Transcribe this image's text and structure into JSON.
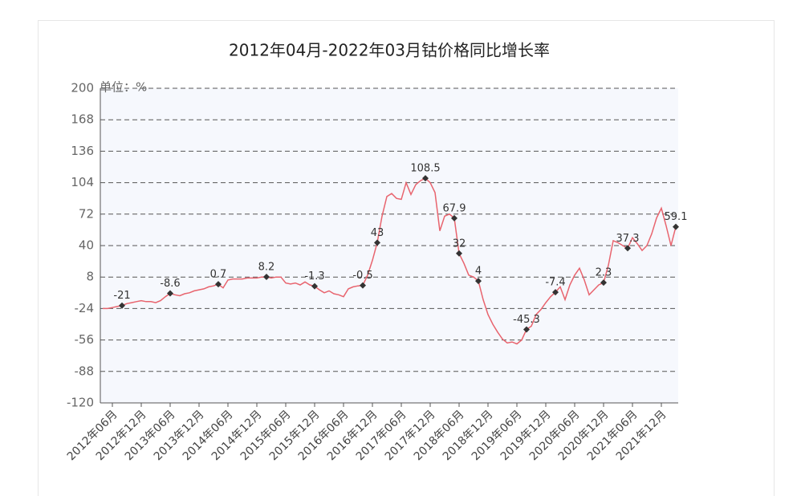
{
  "chart_data": {
    "type": "line",
    "title": "2012年04月-2022年03月钴价格同比增长率",
    "y_label": "单位：%",
    "categories": [
      null,
      null,
      "2012年06月",
      null,
      null,
      null,
      null,
      null,
      "2012年12月",
      null,
      null,
      null,
      null,
      null,
      "2013年06月",
      null,
      null,
      null,
      null,
      null,
      "2013年12月",
      null,
      null,
      null,
      null,
      null,
      "2014年06月",
      null,
      null,
      null,
      null,
      null,
      "2014年12月",
      null,
      null,
      null,
      null,
      null,
      "2015年06月",
      null,
      null,
      null,
      null,
      null,
      "2015年12月",
      null,
      null,
      null,
      null,
      null,
      "2016年06月",
      null,
      null,
      null,
      null,
      null,
      "2016年12月",
      null,
      null,
      null,
      null,
      null,
      "2017年06月",
      null,
      null,
      null,
      null,
      null,
      "2017年12月",
      null,
      null,
      null,
      null,
      null,
      "2018年06月",
      null,
      null,
      null,
      null,
      null,
      "2018年12月",
      null,
      null,
      null,
      null,
      null,
      "2019年06月",
      null,
      null,
      null,
      null,
      null,
      "2019年12月",
      null,
      null,
      null,
      null,
      null,
      "2020年06月",
      null,
      null,
      null,
      null,
      null,
      "2020年12月",
      null,
      null,
      null,
      null,
      null,
      "2021年06月",
      null,
      null,
      null,
      null,
      null,
      "2021年12月",
      null,
      null,
      null
    ],
    "series": [
      {
        "color": "#e8646e",
        "marker_color": "#333333",
        "values": [
          -24,
          -24,
          -23,
          -22,
          -21,
          -19,
          -18,
          -17,
          -16,
          -17,
          -17,
          -18,
          -16,
          -12,
          -8.6,
          -10,
          -11,
          -9,
          -8,
          -6,
          -5,
          -4,
          -2,
          -1,
          0.7,
          -3,
          5,
          6,
          6,
          6,
          7,
          7,
          7,
          8,
          8.2,
          7,
          8,
          8,
          2,
          1,
          2,
          0,
          3,
          0,
          -1.3,
          -5,
          -8,
          -6,
          -9,
          -10,
          -12,
          -4,
          -2,
          -1,
          -0.5,
          10,
          25,
          43,
          70,
          90,
          93,
          88,
          87,
          104,
          92,
          102,
          106,
          108.5,
          104,
          94,
          55,
          70,
          72,
          67.9,
          32,
          22,
          10,
          8,
          4,
          -15,
          -30,
          -40,
          -48,
          -55,
          -59,
          -58,
          -60,
          -56,
          -45.3,
          -42,
          -30,
          -25,
          -18,
          -12,
          -7.4,
          -2,
          -15,
          0,
          10,
          17,
          5,
          -10,
          -5,
          0,
          2.3,
          20,
          45,
          43,
          40,
          37.3,
          48,
          42,
          35,
          40,
          52,
          68,
          78,
          60,
          40,
          59.1
        ],
        "value_labels": [
          null,
          null,
          null,
          null,
          "-21",
          null,
          null,
          null,
          null,
          null,
          null,
          null,
          null,
          null,
          "-8.6",
          null,
          null,
          null,
          null,
          null,
          null,
          null,
          null,
          null,
          "0.7",
          null,
          null,
          null,
          null,
          null,
          null,
          null,
          null,
          null,
          "8.2",
          null,
          null,
          null,
          null,
          null,
          null,
          null,
          null,
          null,
          "-1.3",
          null,
          null,
          null,
          null,
          null,
          null,
          null,
          null,
          null,
          "-0.5",
          null,
          null,
          "43",
          null,
          null,
          null,
          null,
          null,
          null,
          null,
          null,
          null,
          "108.5",
          null,
          null,
          null,
          null,
          null,
          "67.9",
          "32",
          null,
          null,
          null,
          "4",
          null,
          null,
          null,
          null,
          null,
          null,
          null,
          null,
          null,
          "-45.3",
          null,
          null,
          null,
          null,
          null,
          "-7.4",
          null,
          null,
          null,
          null,
          null,
          null,
          null,
          null,
          null,
          "2.3",
          null,
          null,
          null,
          null,
          "37.3",
          null,
          null,
          null,
          null,
          null,
          null,
          null,
          null,
          null,
          "59.1"
        ]
      }
    ],
    "ylim": [
      -120,
      200
    ],
    "yticks": [
      200,
      168,
      136,
      104,
      72,
      40,
      8,
      -24,
      -56,
      -88,
      -120
    ],
    "grid": true
  }
}
